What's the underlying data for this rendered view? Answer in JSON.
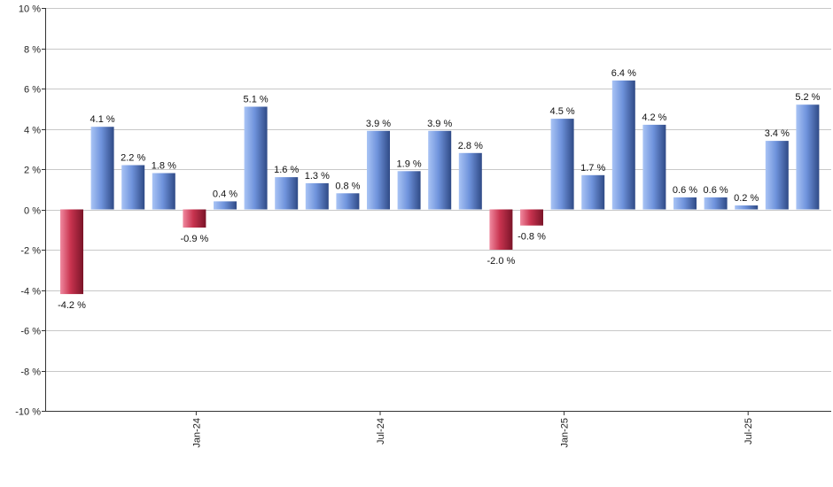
{
  "chart_data": {
    "type": "bar",
    "title": "",
    "xlabel": "",
    "ylabel": "",
    "ylim": [
      -10,
      10
    ],
    "y_ticks": [
      10,
      8,
      6,
      4,
      2,
      0,
      -2,
      -4,
      -6,
      -8,
      -10
    ],
    "y_tick_labels": [
      "10 %",
      "8 %",
      "6 %",
      "4 %",
      "2 %",
      "0 %",
      "-2 %",
      "-4 %",
      "-6 %",
      "-8 %",
      "-10 %"
    ],
    "x_tick_labels": [
      {
        "label": "Jan-24",
        "index": 4
      },
      {
        "label": "Jul-24",
        "index": 10
      },
      {
        "label": "Jan-25",
        "index": 16
      },
      {
        "label": "Jul-25",
        "index": 22
      }
    ],
    "grid": true,
    "values": [
      -4.2,
      4.1,
      2.2,
      1.8,
      -0.9,
      0.4,
      5.1,
      1.6,
      1.3,
      0.8,
      3.9,
      1.9,
      3.9,
      2.8,
      -2.0,
      -0.8,
      4.5,
      1.7,
      6.4,
      4.2,
      0.6,
      0.6,
      0.2,
      3.4,
      5.2
    ],
    "value_labels": [
      "-4.2 %",
      "4.1 %",
      "2.2 %",
      "1.8 %",
      "-0.9 %",
      "0.4 %",
      "5.1 %",
      "1.6 %",
      "1.3 %",
      "0.8 %",
      "3.9 %",
      "1.9 %",
      "3.9 %",
      "2.8 %",
      "-2.0 %",
      "-0.8 %",
      "4.5 %",
      "1.7 %",
      "6.4 %",
      "4.2 %",
      "0.6 %",
      "0.6 %",
      "0.2 %",
      "3.4 %",
      "5.2 %"
    ],
    "colors": {
      "positive_light": "#a9c4f5",
      "positive_mid": "#6f93dc",
      "positive_dark": "#2f4a86",
      "negative_light": "#f08aa0",
      "negative_mid": "#c8334f",
      "negative_dark": "#7a1428",
      "grid": "#c8c8c8",
      "axis": "#333333"
    }
  }
}
